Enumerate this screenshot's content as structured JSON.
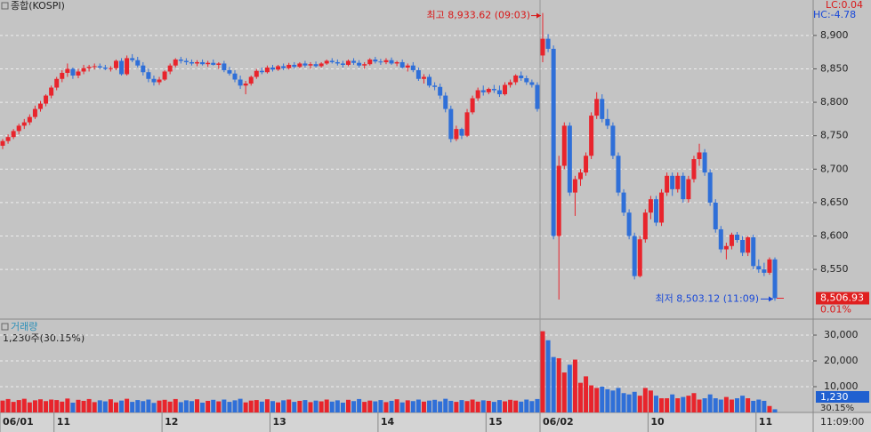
{
  "chart_data": {
    "type": "candlestick",
    "title": "종합(KOSPI)",
    "lc_label": "LC:0.04",
    "hc_label": "HC:-4.78",
    "high_annotation": "최고 8,933.62 (09:03)",
    "low_annotation": "최저 8,503.12 (11:09)",
    "last_label": "8,506.93",
    "change_label": "0.01%",
    "time_label": "11:09:00",
    "colors": {
      "up": "#e8242c",
      "down": "#2f6fd8"
    },
    "ylim": [
      8477,
      8953
    ],
    "yticks": [
      {
        "value": 8550,
        "label": "8,550"
      },
      {
        "value": 8600,
        "label": "8,600"
      },
      {
        "value": 8650,
        "label": "8,650"
      },
      {
        "value": 8700,
        "label": "8,700"
      },
      {
        "value": 8750,
        "label": "8,750"
      },
      {
        "value": 8800,
        "label": "8,800"
      },
      {
        "value": 8850,
        "label": "8,850"
      },
      {
        "value": 8900,
        "label": "8,900"
      }
    ],
    "xticks": [
      {
        "value": 0,
        "label": "06/01"
      },
      {
        "value": 10,
        "label": "11"
      },
      {
        "value": 30,
        "label": "12"
      },
      {
        "value": 50,
        "label": "13"
      },
      {
        "value": 70,
        "label": "14"
      },
      {
        "value": 90,
        "label": "15"
      },
      {
        "value": 100,
        "label": "06/02"
      },
      {
        "value": 120,
        "label": "10"
      },
      {
        "value": 140,
        "label": "11"
      }
    ],
    "candles": [
      [
        8735,
        8745,
        8730,
        8742
      ],
      [
        8742,
        8752,
        8738,
        8748
      ],
      [
        8748,
        8760,
        8745,
        8757
      ],
      [
        8757,
        8768,
        8752,
        8765
      ],
      [
        8765,
        8775,
        8760,
        8770
      ],
      [
        8770,
        8782,
        8766,
        8778
      ],
      [
        8778,
        8795,
        8775,
        8790
      ],
      [
        8790,
        8802,
        8786,
        8798
      ],
      [
        8798,
        8812,
        8794,
        8810
      ],
      [
        8810,
        8825,
        8806,
        8822
      ],
      [
        8822,
        8838,
        8818,
        8835
      ],
      [
        8835,
        8848,
        8830,
        8844
      ],
      [
        8844,
        8858,
        8838,
        8850
      ],
      [
        8850,
        8852,
        8835,
        8840
      ],
      [
        8840,
        8850,
        8836,
        8846
      ],
      [
        8846,
        8856,
        8842,
        8851
      ],
      [
        8851,
        8856,
        8846,
        8853
      ],
      [
        8853,
        8858,
        8849,
        8854
      ],
      [
        8854,
        8858,
        8850,
        8852
      ],
      [
        8852,
        8856,
        8848,
        8850
      ],
      [
        8850,
        8854,
        8846,
        8851
      ],
      [
        8851,
        8864,
        8848,
        8862
      ],
      [
        8862,
        8866,
        8840,
        8842
      ],
      [
        8842,
        8870,
        8840,
        8866
      ],
      [
        8866,
        8872,
        8860,
        8863
      ],
      [
        8863,
        8868,
        8852,
        8855
      ],
      [
        8855,
        8860,
        8840,
        8845
      ],
      [
        8845,
        8850,
        8830,
        8835
      ],
      [
        8835,
        8840,
        8825,
        8830
      ],
      [
        8830,
        8838,
        8826,
        8834
      ],
      [
        8834,
        8848,
        8832,
        8846
      ],
      [
        8846,
        8858,
        8842,
        8855
      ],
      [
        8855,
        8866,
        8852,
        8864
      ],
      [
        8864,
        8868,
        8858,
        8862
      ],
      [
        8862,
        8866,
        8856,
        8860
      ],
      [
        8860,
        8864,
        8855,
        8858
      ],
      [
        8858,
        8863,
        8854,
        8860
      ],
      [
        8860,
        8864,
        8855,
        8857
      ],
      [
        8857,
        8862,
        8853,
        8859
      ],
      [
        8859,
        8864,
        8855,
        8856
      ],
      [
        8856,
        8860,
        8850,
        8858
      ],
      [
        8858,
        8862,
        8845,
        8848
      ],
      [
        8848,
        8853,
        8840,
        8843
      ],
      [
        8843,
        8848,
        8830,
        8834
      ],
      [
        8834,
        8840,
        8820,
        8825
      ],
      [
        8825,
        8832,
        8812,
        8828
      ],
      [
        8828,
        8840,
        8825,
        8838
      ],
      [
        8838,
        8850,
        8835,
        8847
      ],
      [
        8847,
        8852,
        8842,
        8845
      ],
      [
        8845,
        8855,
        8843,
        8852
      ],
      [
        8852,
        8856,
        8846,
        8849
      ],
      [
        8849,
        8856,
        8847,
        8854
      ],
      [
        8854,
        8858,
        8848,
        8851
      ],
      [
        8851,
        8859,
        8849,
        8856
      ],
      [
        8856,
        8860,
        8850,
        8853
      ],
      [
        8853,
        8860,
        8851,
        8858
      ],
      [
        8858,
        8862,
        8852,
        8855
      ],
      [
        8855,
        8860,
        8850,
        8857
      ],
      [
        8857,
        8861,
        8852,
        8854
      ],
      [
        8854,
        8860,
        8852,
        8858
      ],
      [
        8858,
        8864,
        8856,
        8862
      ],
      [
        8862,
        8866,
        8858,
        8860
      ],
      [
        8860,
        8864,
        8855,
        8858
      ],
      [
        8858,
        8862,
        8852,
        8856
      ],
      [
        8856,
        8864,
        8854,
        8862
      ],
      [
        8862,
        8866,
        8856,
        8859
      ],
      [
        8859,
        8863,
        8852,
        8855
      ],
      [
        8855,
        8860,
        8850,
        8857
      ],
      [
        8857,
        8866,
        8855,
        8864
      ],
      [
        8864,
        8868,
        8858,
        8861
      ],
      [
        8861,
        8865,
        8856,
        8860
      ],
      [
        8860,
        8866,
        8857,
        8863
      ],
      [
        8863,
        8867,
        8856,
        8858
      ],
      [
        8858,
        8862,
        8854,
        8860
      ],
      [
        8860,
        8864,
        8850,
        8852
      ],
      [
        8852,
        8858,
        8846,
        8855
      ],
      [
        8855,
        8860,
        8845,
        8848
      ],
      [
        8848,
        8852,
        8832,
        8835
      ],
      [
        8835,
        8842,
        8828,
        8838
      ],
      [
        8838,
        8842,
        8822,
        8825
      ],
      [
        8825,
        8830,
        8818,
        8823
      ],
      [
        8823,
        8828,
        8805,
        8810
      ],
      [
        8810,
        8815,
        8785,
        8790
      ],
      [
        8790,
        8795,
        8740,
        8745
      ],
      [
        8745,
        8765,
        8742,
        8760
      ],
      [
        8760,
        8762,
        8745,
        8750
      ],
      [
        8750,
        8790,
        8748,
        8785
      ],
      [
        8785,
        8810,
        8782,
        8806
      ],
      [
        8806,
        8822,
        8802,
        8818
      ],
      [
        8818,
        8825,
        8810,
        8815
      ],
      [
        8815,
        8822,
        8812,
        8820
      ],
      [
        8820,
        8826,
        8814,
        8818
      ],
      [
        8818,
        8825,
        8808,
        8812
      ],
      [
        8812,
        8830,
        8810,
        8826
      ],
      [
        8826,
        8834,
        8822,
        8830
      ],
      [
        8830,
        8842,
        8826,
        8840
      ],
      [
        8840,
        8846,
        8832,
        8836
      ],
      [
        8836,
        8840,
        8826,
        8830
      ],
      [
        8830,
        8834,
        8822,
        8826
      ],
      [
        8826,
        8830,
        8786,
        8790
      ],
      [
        8870,
        8933.62,
        8860,
        8895
      ],
      [
        8895,
        8902,
        8875,
        8880
      ],
      [
        8880,
        8885,
        8595,
        8600
      ],
      [
        8600,
        8720,
        8505,
        8705
      ],
      [
        8705,
        8770,
        8700,
        8765
      ],
      [
        8765,
        8770,
        8660,
        8665
      ],
      [
        8665,
        8690,
        8630,
        8685
      ],
      [
        8685,
        8700,
        8675,
        8695
      ],
      [
        8695,
        8725,
        8690,
        8720
      ],
      [
        8720,
        8785,
        8715,
        8780
      ],
      [
        8780,
        8815,
        8775,
        8805
      ],
      [
        8805,
        8812,
        8770,
        8775
      ],
      [
        8775,
        8790,
        8760,
        8765
      ],
      [
        8765,
        8770,
        8715,
        8720
      ],
      [
        8720,
        8725,
        8660,
        8665
      ],
      [
        8665,
        8670,
        8630,
        8635
      ],
      [
        8635,
        8640,
        8595,
        8600
      ],
      [
        8600,
        8605,
        8535,
        8540
      ],
      [
        8540,
        8600,
        8538,
        8595
      ],
      [
        8595,
        8640,
        8590,
        8635
      ],
      [
        8635,
        8660,
        8625,
        8655
      ],
      [
        8655,
        8660,
        8615,
        8620
      ],
      [
        8620,
        8670,
        8615,
        8665
      ],
      [
        8665,
        8695,
        8660,
        8690
      ],
      [
        8690,
        8695,
        8660,
        8670
      ],
      [
        8670,
        8695,
        8665,
        8690
      ],
      [
        8690,
        8695,
        8650,
        8655
      ],
      [
        8655,
        8690,
        8650,
        8685
      ],
      [
        8685,
        8720,
        8680,
        8715
      ],
      [
        8715,
        8738,
        8705,
        8725
      ],
      [
        8725,
        8730,
        8690,
        8695
      ],
      [
        8695,
        8700,
        8645,
        8650
      ],
      [
        8650,
        8655,
        8605,
        8610
      ],
      [
        8610,
        8615,
        8575,
        8580
      ],
      [
        8580,
        8590,
        8565,
        8585
      ],
      [
        8585,
        8605,
        8580,
        8602
      ],
      [
        8602,
        8606,
        8590,
        8594
      ],
      [
        8594,
        8600,
        8570,
        8575
      ],
      [
        8575,
        8600,
        8570,
        8598
      ],
      [
        8598,
        8602,
        8550,
        8555
      ],
      [
        8555,
        8565,
        8545,
        8550
      ],
      [
        8550,
        8560,
        8540,
        8545
      ],
      [
        8545,
        8568,
        8542,
        8565
      ],
      [
        8565,
        8568,
        8503.12,
        8506.93
      ]
    ],
    "volume": {
      "title": "거래량",
      "info": "1,230주(30.15%)",
      "last_label": "1,230",
      "pct_label": "30.15%",
      "ylim": [
        0,
        35860
      ],
      "yticks": [
        {
          "value": 10000,
          "label": "10,000"
        },
        {
          "value": 20000,
          "label": "20,000"
        },
        {
          "value": 30000,
          "label": "30,000"
        }
      ],
      "values": [
        4600,
        5200,
        4100,
        4800,
        5300,
        3900,
        4700,
        5100,
        4400,
        5000,
        4800,
        4200,
        5400,
        3800,
        4900,
        4500,
        5200,
        4000,
        4700,
        4300,
        5100,
        3900,
        4600,
        5300,
        4100,
        4800,
        4400,
        5000,
        3700,
        4600,
        4900,
        4200,
        5200,
        4000,
        4700,
        4400,
        5100,
        3800,
        4500,
        4900,
        4300,
        5000,
        4100,
        4700,
        5300,
        3900,
        4600,
        4800,
        4200,
        5100,
        4400,
        3900,
        4700,
        5000,
        4100,
        4500,
        4800,
        4000,
        4600,
        4300,
        5000,
        4200,
        4700,
        3800,
        4900,
        4400,
        5200,
        4100,
        4600,
        4300,
        4800,
        4000,
        4500,
        5100,
        3900,
        4700,
        4400,
        5000,
        4200,
        4600,
        4900,
        4300,
        5300,
        4500,
        4100,
        4800,
        4400,
        5000,
        4200,
        4700,
        4500,
        4100,
        4800,
        4300,
        4900,
        4600,
        4200,
        5000,
        4400,
        5200,
        31500,
        28000,
        21500,
        21000,
        15500,
        18500,
        20500,
        11500,
        14000,
        10500,
        9500,
        10000,
        9000,
        8500,
        9500,
        7500,
        7000,
        8000,
        6500,
        9500,
        8500,
        6500,
        5500,
        5500,
        7000,
        5500,
        6000,
        6500,
        7500,
        5000,
        5500,
        7000,
        5500,
        5000,
        6000,
        5000,
        5500,
        6500,
        5500,
        4500,
        5000,
        4500,
        2500,
        1230
      ]
    }
  }
}
